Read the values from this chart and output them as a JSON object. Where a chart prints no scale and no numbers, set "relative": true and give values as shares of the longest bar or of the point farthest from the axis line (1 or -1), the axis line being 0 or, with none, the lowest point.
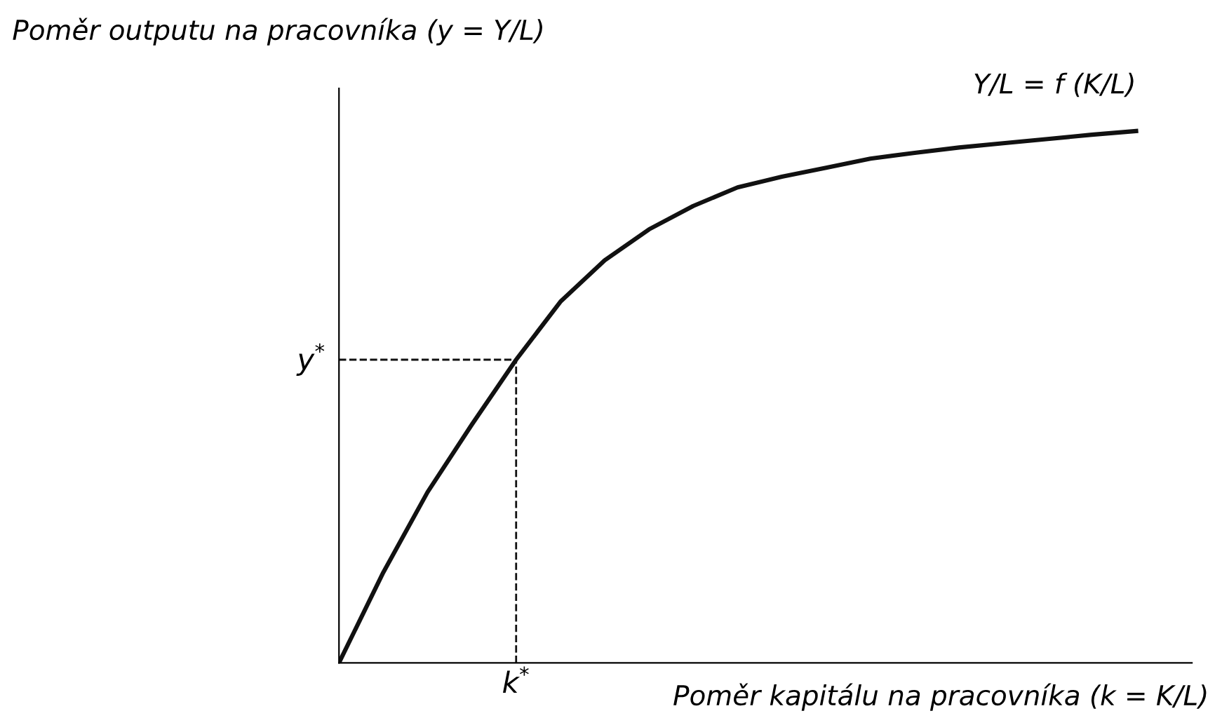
{
  "chart_data": {
    "type": "line",
    "relative": true,
    "xlabel": "Poměr kapitálu na pracovníka (k = K/L)",
    "ylabel": "Poměr outputu na pracovníka (y = Y/L)",
    "categories": [
      null,
      null,
      null,
      null,
      null,
      null,
      null,
      null,
      null,
      null,
      null,
      null,
      null,
      null,
      null,
      null,
      null,
      null,
      null
    ],
    "annotations": [
      "k$^{*}$"
    ],
    "series": [
      {
        "name": "Y/L = f (K/L)",
        "color": "#111111",
        "values": [
          0,
          0.17,
          0.321,
          0.448,
          0.57,
          0.679,
          0.757,
          0.815,
          0.859,
          0.894,
          0.914,
          0.931,
          0.948,
          0.959,
          0.969,
          0.977,
          0.985,
          0.993,
          1
        ]
      }
    ],
    "ref_lines": [
      {
        "axis": "y",
        "value": 0.57,
        "label": "y$^{*}$",
        "line_style": "dashed",
        "color": "#111111"
      }
    ],
    "grid": false,
    "legend": false,
    "marker": "none",
    "line_style": "solid"
  }
}
